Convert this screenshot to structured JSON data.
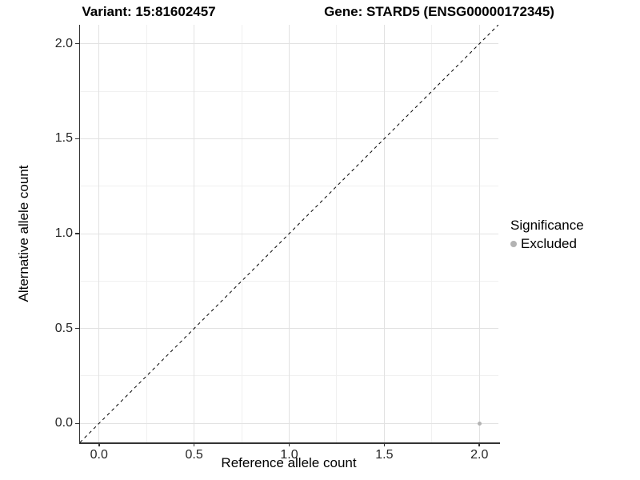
{
  "titles": {
    "variant": "Variant: 15:81602457",
    "gene": "Gene: STARD5 (ENSG00000172345)"
  },
  "legend": {
    "title": "Significance",
    "items": [
      {
        "label": "Excluded",
        "color": "#b3b3b3"
      }
    ]
  },
  "chart_data": {
    "type": "scatter",
    "title": "Variant: 15:81602457 | Gene: STARD5 (ENSG00000172345)",
    "xlabel": "Reference allele count",
    "ylabel": "Alternative allele count",
    "xlim": [
      -0.1,
      2.1
    ],
    "ylim": [
      -0.1,
      2.1
    ],
    "xticks": [
      0.0,
      0.5,
      1.0,
      1.5,
      2.0
    ],
    "yticks": [
      0.0,
      0.5,
      1.0,
      1.5,
      2.0
    ],
    "xtick_labels": [
      "0.0",
      "0.5",
      "1.0",
      "1.5",
      "2.0"
    ],
    "ytick_labels": [
      "0.0",
      "0.5",
      "1.0",
      "1.5",
      "2.0"
    ],
    "x_minor": [
      0.25,
      0.75,
      1.25,
      1.75
    ],
    "y_minor": [
      0.25,
      0.75,
      1.25,
      1.75
    ],
    "grid": true,
    "legend_position": "right",
    "series": [
      {
        "name": "Excluded",
        "color": "#b3b3b3",
        "points": [
          {
            "x": 2.0,
            "y": 0.0
          }
        ]
      }
    ],
    "reference_line": {
      "kind": "identity",
      "style": "dashed",
      "color": "#000000",
      "from": [
        -0.1,
        -0.1
      ],
      "to": [
        2.1,
        2.1
      ]
    },
    "colors": {
      "axis_line": "#333333",
      "grid_major": "#e2e2e2",
      "grid_minor": "#f0f0f0",
      "point_excluded": "#b3b3b3"
    }
  }
}
